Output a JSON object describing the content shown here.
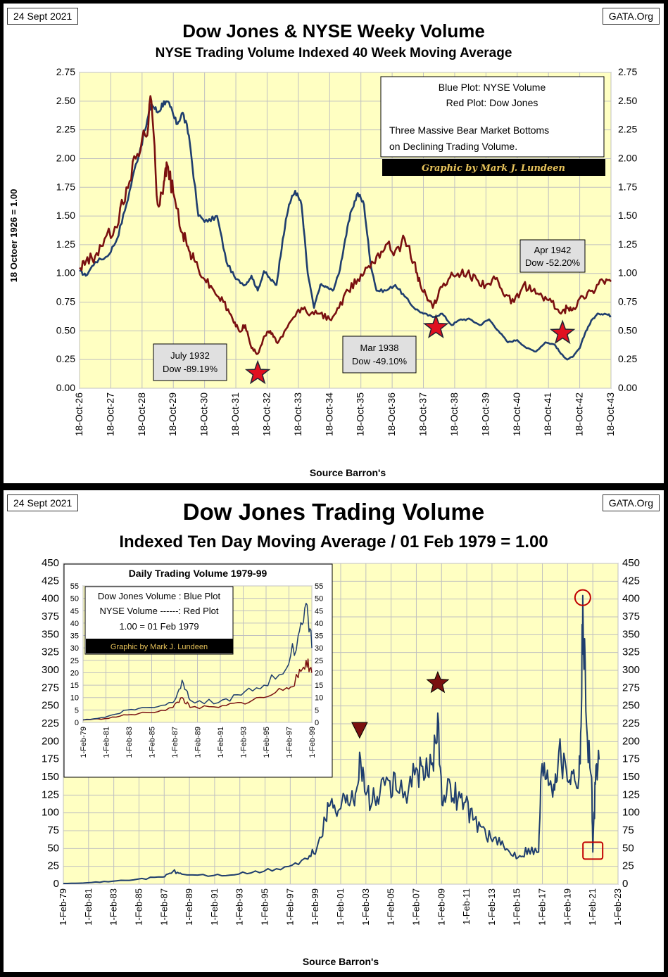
{
  "top": {
    "date": "24 Sept 2021",
    "site": "GATA.Org",
    "title": "Dow Jones & NYSE Weeky Volume",
    "subtitle": "NYSE Trading Volume Indexed 40 Week Moving Average",
    "source": "Source  Barron's",
    "legend": {
      "line1": "Blue Plot: NYSE Volume",
      "line2": "Red Plot: Dow Jones",
      "line3": "Three Massive Bear Market Bottoms",
      "line4": "on Declining Trading Volume.",
      "credit": "Graphic by Mark J. Lundeen"
    },
    "annotations": [
      {
        "line1": "July 1932",
        "line2": "Dow -89.19%",
        "year": 1932.5,
        "value": 0.13
      },
      {
        "line1": "Mar 1938",
        "line2": "Dow -49.10%",
        "year": 1938.2,
        "value": 0.53
      },
      {
        "line1": "Apr 1942",
        "line2": "Dow -52.20%",
        "year": 1942.25,
        "value": 0.48
      }
    ]
  },
  "bottom": {
    "date": "24 Sept 2021",
    "site": "GATA.Org",
    "title": "Dow Jones Trading Volume",
    "subtitle": "Indexed Ten Day Moving Average / 01 Feb 1979 = 1.00",
    "source": "Source Barron's",
    "inset": {
      "title": "Daily Trading Volume 1979-99",
      "line1": "Dow Jones Volume : Blue Plot",
      "line2": "NYSE Volume ------: Red Plot",
      "line3": "1.00 = 01 Feb 1979",
      "credit": "Graphic by Mark J. Lundeen"
    }
  },
  "colors": {
    "blue": "#1f3e6e",
    "red": "#7a1010",
    "plot_bg": "#ffffc2",
    "grid": "#c0c0c0",
    "star": "#e01020",
    "dark_marker": "#7a1010",
    "circle": "#c00000"
  },
  "chart_data": [
    {
      "type": "line",
      "title": "Dow Jones & NYSE Weeky Volume",
      "subtitle": "NYSE Trading Volume Indexed 40 Week Moving Average",
      "ylabel": "18  Octoer  1926   = 1.00",
      "xlabel": "Source  Barron's",
      "ylim": [
        0,
        2.75
      ],
      "xlim": [
        1926.8,
        1943.8
      ],
      "yticks": [
        "0.00",
        "0.25",
        "0.50",
        "0.75",
        "1.00",
        "1.25",
        "1.50",
        "1.75",
        "2.00",
        "2.25",
        "2.50",
        "2.75"
      ],
      "xticks": [
        "18-Oct-26",
        "18-Oct-27",
        "18-Oct-28",
        "18-Oct-29",
        "18-Oct-30",
        "18-Oct-31",
        "18-Oct-32",
        "18-Oct-33",
        "18-Oct-34",
        "18-Oct-35",
        "18-Oct-36",
        "18-Oct-37",
        "18-Oct-38",
        "18-Oct-39",
        "18-Oct-40",
        "18-Oct-41",
        "18-Oct-42",
        "18-Oct-43"
      ],
      "series": [
        {
          "name": "NYSE Volume",
          "color": "#1f3e6e",
          "x": [
            1926.8,
            1927.0,
            1927.3,
            1927.7,
            1928.0,
            1928.3,
            1928.6,
            1928.9,
            1929.1,
            1929.3,
            1929.5,
            1929.7,
            1929.9,
            1930.1,
            1930.3,
            1930.6,
            1930.9,
            1931.2,
            1931.5,
            1931.8,
            1932.1,
            1932.3,
            1932.5,
            1932.7,
            1932.9,
            1933.1,
            1933.3,
            1933.5,
            1933.7,
            1933.9,
            1934.1,
            1934.3,
            1934.5,
            1934.7,
            1934.9,
            1935.1,
            1935.3,
            1935.5,
            1935.7,
            1935.9,
            1936.1,
            1936.3,
            1936.6,
            1936.9,
            1937.2,
            1937.5,
            1937.8,
            1938.1,
            1938.4,
            1938.7,
            1939.0,
            1939.3,
            1939.6,
            1939.9,
            1940.2,
            1940.5,
            1940.8,
            1941.1,
            1941.4,
            1941.7,
            1942.0,
            1942.2,
            1942.4,
            1942.6,
            1942.8,
            1943.0,
            1943.2,
            1943.4,
            1943.6,
            1943.8
          ],
          "values": [
            1.02,
            0.98,
            1.1,
            1.15,
            1.3,
            1.6,
            1.95,
            2.25,
            2.48,
            2.4,
            2.5,
            2.45,
            2.3,
            2.4,
            2.2,
            1.5,
            1.45,
            1.5,
            1.1,
            0.95,
            0.9,
            0.98,
            0.85,
            1.02,
            0.95,
            0.9,
            1.3,
            1.6,
            1.72,
            1.6,
            1.0,
            0.7,
            0.9,
            0.88,
            0.85,
            1.0,
            1.3,
            1.55,
            1.7,
            1.6,
            1.1,
            0.85,
            0.85,
            0.9,
            0.8,
            0.7,
            0.65,
            0.62,
            0.65,
            0.55,
            0.6,
            0.6,
            0.55,
            0.6,
            0.5,
            0.4,
            0.42,
            0.35,
            0.32,
            0.4,
            0.38,
            0.3,
            0.25,
            0.28,
            0.35,
            0.5,
            0.6,
            0.65,
            0.65,
            0.63
          ]
        },
        {
          "name": "Dow Jones",
          "color": "#7a1010",
          "x": [
            1926.8,
            1927.0,
            1927.3,
            1927.6,
            1928.0,
            1928.3,
            1928.6,
            1928.9,
            1929.1,
            1929.3,
            1929.5,
            1929.6,
            1929.8,
            1930.1,
            1930.3,
            1930.5,
            1930.8,
            1931.1,
            1931.4,
            1931.7,
            1931.9,
            1932.1,
            1932.3,
            1932.5,
            1932.7,
            1932.9,
            1933.1,
            1933.3,
            1933.6,
            1933.9,
            1934.2,
            1934.5,
            1934.8,
            1935.1,
            1935.4,
            1935.7,
            1936.0,
            1936.3,
            1936.6,
            1936.9,
            1937.2,
            1937.5,
            1937.7,
            1937.9,
            1938.1,
            1938.3,
            1938.6,
            1938.9,
            1939.2,
            1939.5,
            1939.8,
            1940.1,
            1940.4,
            1940.7,
            1941.0,
            1941.3,
            1941.6,
            1941.9,
            1942.2,
            1942.4,
            1942.6,
            1942.9,
            1943.2,
            1943.5,
            1943.8
          ],
          "values": [
            1.05,
            1.1,
            1.15,
            1.3,
            1.4,
            1.75,
            2.0,
            2.2,
            2.5,
            1.6,
            1.8,
            1.95,
            1.7,
            1.35,
            1.2,
            1.1,
            0.95,
            0.85,
            0.75,
            0.6,
            0.5,
            0.55,
            0.35,
            0.3,
            0.45,
            0.5,
            0.4,
            0.45,
            0.6,
            0.7,
            0.65,
            0.65,
            0.6,
            0.7,
            0.85,
            0.95,
            1.05,
            1.15,
            1.25,
            1.2,
            1.3,
            1.1,
            0.9,
            0.8,
            0.7,
            0.85,
            0.95,
            1.0,
            1.0,
            0.95,
            0.9,
            0.95,
            0.8,
            0.75,
            0.9,
            0.85,
            0.8,
            0.75,
            0.65,
            0.7,
            0.7,
            0.8,
            0.85,
            0.95,
            0.93
          ]
        }
      ],
      "markers": [
        {
          "type": "star",
          "x": 1932.5,
          "value": 0.13
        },
        {
          "type": "star",
          "x": 1938.2,
          "value": 0.53
        },
        {
          "type": "star",
          "x": 1942.25,
          "value": 0.48
        }
      ]
    },
    {
      "type": "line",
      "title": "Dow Jones Trading Volume",
      "subtitle": "Indexed Ten Day Moving Average / 01 Feb 1979 = 1.00",
      "xlabel": "Source Barron's",
      "ylim": [
        0,
        450
      ],
      "xlim": [
        1979.1,
        2023.1
      ],
      "yticks": [
        "0",
        "25",
        "50",
        "75",
        "100",
        "125",
        "150",
        "175",
        "200",
        "225",
        "250",
        "275",
        "300",
        "325",
        "350",
        "375",
        "400",
        "425",
        "450"
      ],
      "xticks": [
        "1-Feb-79",
        "1-Feb-81",
        "1-Feb-83",
        "1-Feb-85",
        "1-Feb-87",
        "1-Feb-89",
        "1-Feb-91",
        "1-Feb-93",
        "1-Feb-95",
        "1-Feb-97",
        "1-Feb-99",
        "1-Feb-01",
        "1-Feb-03",
        "1-Feb-05",
        "1-Feb-07",
        "1-Feb-09",
        "1-Feb-11",
        "1-Feb-13",
        "1-Feb-15",
        "1-Feb-17",
        "1-Feb-19",
        "1-Feb-21",
        "1-Feb-23"
      ],
      "series": [
        {
          "name": "Dow Jones Volume",
          "color": "#1f3e6e",
          "x": [
            1979.1,
            1981,
            1983,
            1985,
            1987,
            1987.8,
            1988.5,
            1991,
            1993,
            1995,
            1997,
            1998.5,
            1999.2,
            1999.9,
            2000.4,
            2001.0,
            2001.6,
            2002.2,
            2002.6,
            2003.0,
            2003.6,
            2004.2,
            2005.0,
            2005.6,
            2006.5,
            2007.2,
            2007.8,
            2008.4,
            2008.8,
            2009.2,
            2009.8,
            2010.4,
            2011.0,
            2011.6,
            2012.3,
            2013.0,
            2013.8,
            2014.5,
            2015.3,
            2016.0,
            2016.8,
            2017.0,
            2017.5,
            2018.0,
            2018.4,
            2019.0,
            2019.5,
            2020.0,
            2020.2,
            2020.3,
            2020.6,
            2021.0,
            2021.1,
            2021.3,
            2021.6
          ],
          "values": [
            1,
            2,
            4,
            7,
            10,
            18,
            14,
            12,
            14,
            18,
            25,
            35,
            50,
            90,
            120,
            105,
            125,
            110,
            185,
            130,
            115,
            125,
            145,
            130,
            135,
            160,
            150,
            170,
            240,
            110,
            140,
            120,
            115,
            90,
            80,
            65,
            55,
            45,
            40,
            50,
            45,
            155,
            160,
            140,
            185,
            160,
            155,
            150,
            250,
            405,
            225,
            150,
            45,
            140,
            175
          ]
        },
        {
          "name": "Dow Jones Volume (Daily 1979-99)",
          "color": "#1f3e6e",
          "inset": true,
          "x": [
            1979.1,
            1981,
            1983,
            1985,
            1987,
            1987.8,
            1988.5,
            1991,
            1993,
            1995,
            1997,
            1998,
            1998.7,
            1999.2
          ],
          "values": [
            1,
            2,
            5,
            6,
            8,
            17,
            9,
            8,
            11,
            15,
            22,
            35,
            48,
            30
          ]
        },
        {
          "name": "NYSE Volume",
          "color": "#7a1010",
          "inset": true,
          "x": [
            1979.1,
            1981,
            1983,
            1985,
            1987,
            1987.8,
            1988.5,
            1991,
            1993,
            1995,
            1997,
            1998,
            1998.7,
            1999.2
          ],
          "values": [
            1,
            1.5,
            3,
            4,
            6,
            10,
            6,
            6,
            8,
            10,
            14,
            18,
            25,
            20
          ]
        }
      ],
      "inset_ylim": [
        0,
        55
      ],
      "inset_yticks": [
        "0",
        "5",
        "10",
        "15",
        "20",
        "25",
        "30",
        "35",
        "40",
        "45",
        "50",
        "55"
      ],
      "inset_xticks": [
        "1-Feb-79",
        "1-Feb-81",
        "1-Feb-83",
        "1-Feb-85",
        "1-Feb-87",
        "1-Feb-89",
        "1-Feb-91",
        "1-Feb-93",
        "1-Feb-95",
        "1-Feb-97",
        "1-Feb-99"
      ],
      "markers": [
        {
          "type": "triangle-down",
          "x": 2002.6,
          "value": 215
        },
        {
          "type": "star",
          "x": 2008.8,
          "value": 282
        },
        {
          "type": "circle",
          "x": 2020.3,
          "value": 402
        },
        {
          "type": "square",
          "x": 2021.1,
          "value": 47
        }
      ]
    }
  ]
}
